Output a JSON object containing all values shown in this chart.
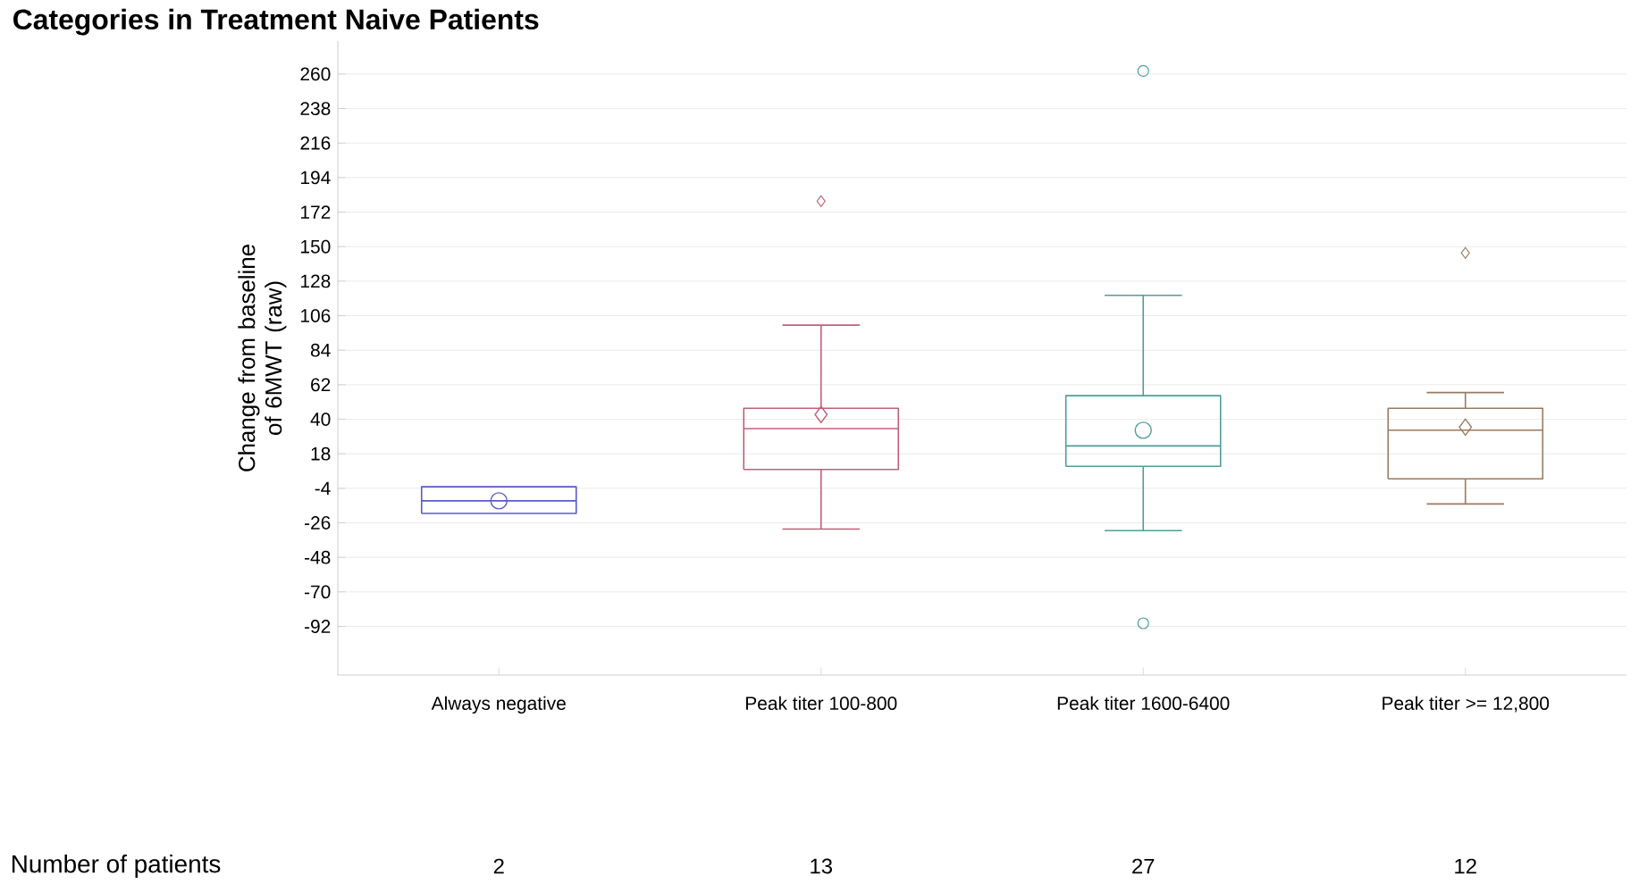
{
  "chart_data": {
    "type": "box",
    "title": "Categories in Treatment Naive Patients",
    "ylabel": "Change from baseline of 6MWT (raw)",
    "categories": [
      "Always negative",
      "Peak titer 100-800",
      "Peak titer 1600-6400",
      "Peak titer >= 12,800"
    ],
    "series": [
      {
        "color": "#5a5ac8",
        "marker": "circle",
        "boxes": [
          {
            "low": -20,
            "q1": -20,
            "median": -12,
            "q3": -3,
            "high": -3,
            "mean": -12
          },
          null,
          null,
          null
        ]
      },
      {
        "color": "#c0607a",
        "marker": "diamond",
        "boxes": [
          null,
          {
            "low": -30,
            "q1": 8,
            "median": 34,
            "q3": 47,
            "high": 100,
            "mean": 43,
            "outliers": [
              179
            ]
          },
          null,
          null
        ]
      },
      {
        "color": "#4f9e98",
        "marker": "circle",
        "boxes": [
          null,
          null,
          {
            "low": -31,
            "q1": 10,
            "median": 23,
            "q3": 55,
            "high": 119,
            "mean": 33,
            "outliers": [
              262,
              -90
            ]
          },
          null
        ]
      },
      {
        "color": "#9a7a60",
        "marker": "diamond",
        "boxes": [
          null,
          null,
          null,
          {
            "low": -14,
            "q1": 2,
            "median": 33,
            "q3": 47,
            "high": 57,
            "mean": 35,
            "outliers": [
              146
            ]
          }
        ]
      }
    ],
    "ylim": [
      -123,
      281
    ],
    "yticks": [
      -92,
      -70,
      -48,
      -26,
      -4,
      18,
      40,
      62,
      84,
      106,
      128,
      150,
      172,
      194,
      216,
      238,
      260
    ],
    "grid": "y",
    "annotations": [
      "Number of patients",
      "2",
      "13",
      "27",
      "12"
    ]
  }
}
